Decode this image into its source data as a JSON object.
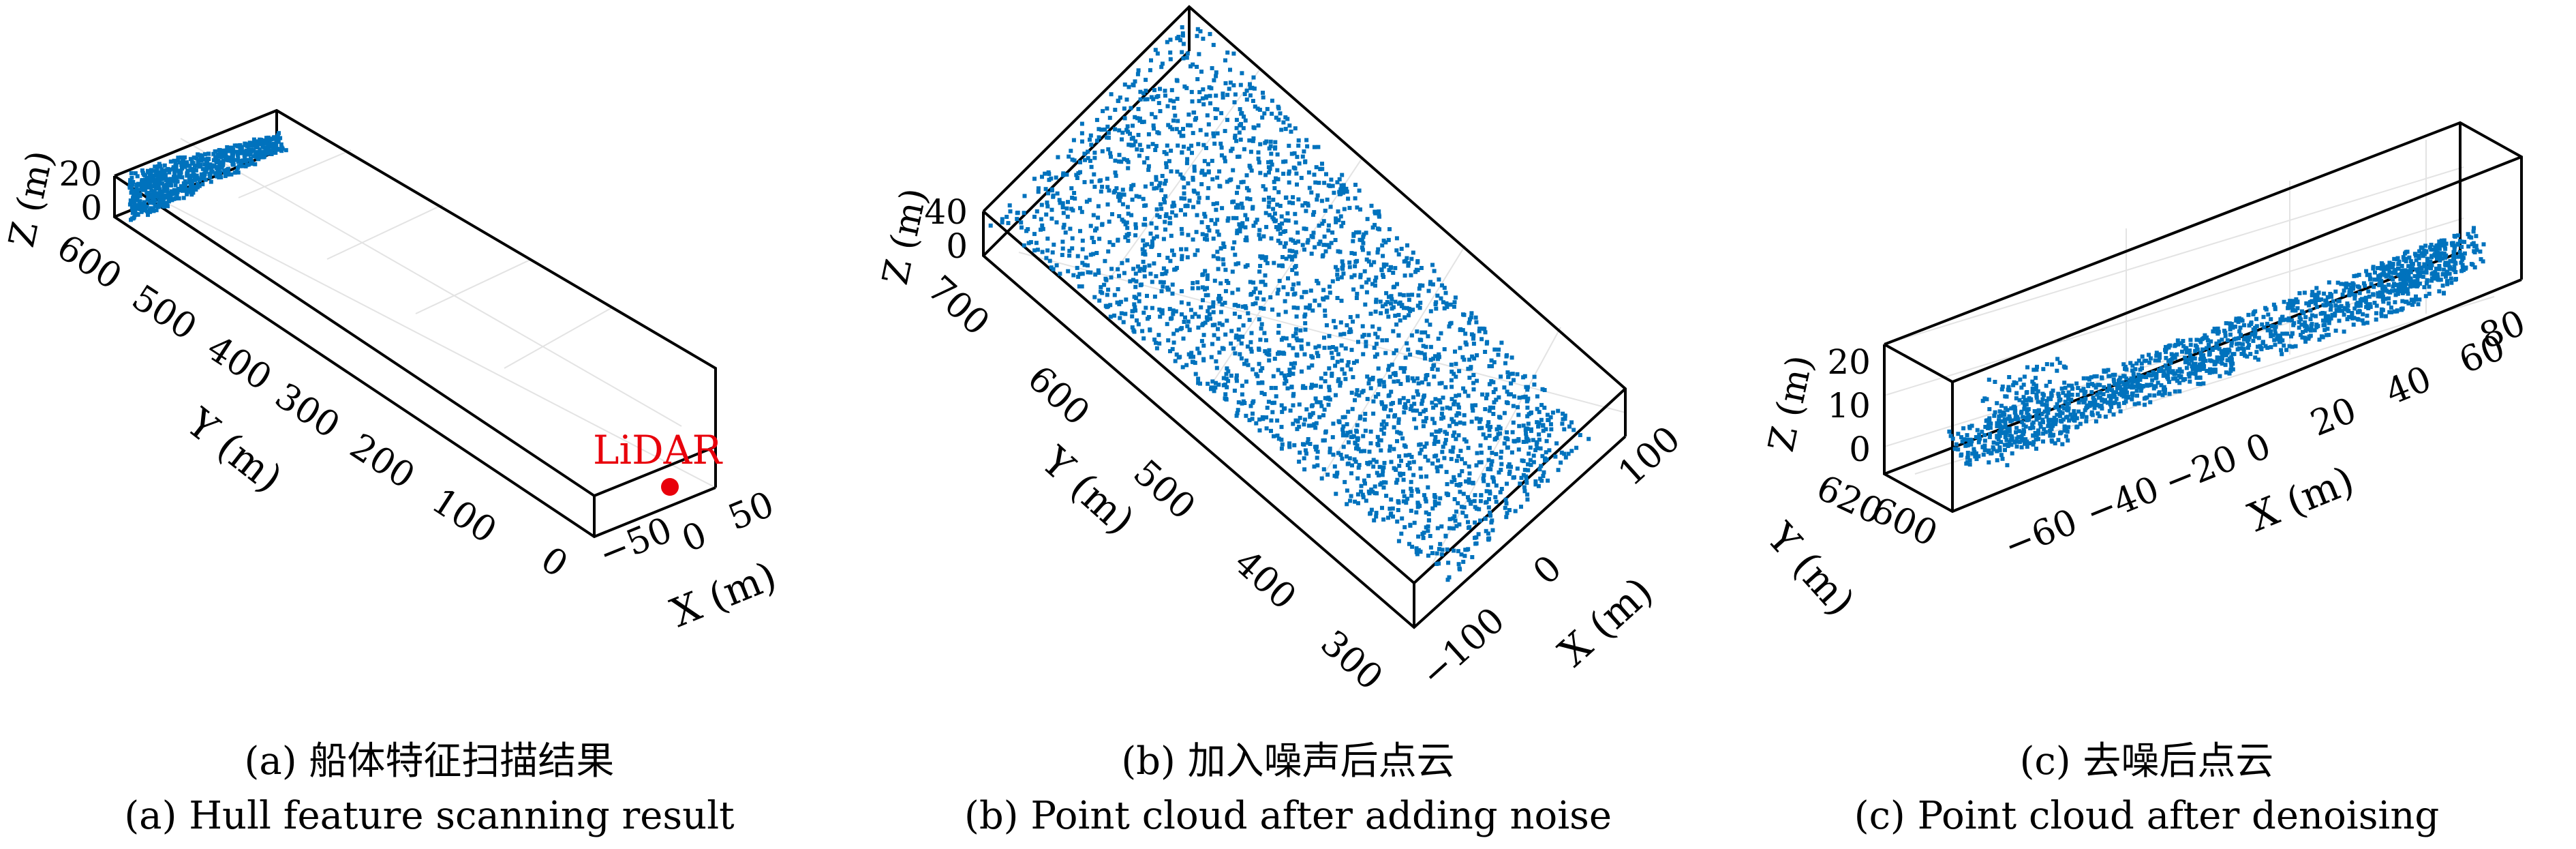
{
  "panels": [
    {
      "caption_zh": "(a) 船体特征扫描结果",
      "caption_en": "(a) Hull feature scanning result"
    },
    {
      "caption_zh": "(b) 加入噪声后点云",
      "caption_en": "(b) Point cloud after adding noise"
    },
    {
      "caption_zh": "(c) 去噪后点云",
      "caption_en": "(c) Point cloud after denoising"
    }
  ],
  "chart_data": [
    {
      "type": "scatter",
      "title": "",
      "xlabel": "X (m)",
      "ylabel": "Y (m)",
      "zlabel": "Z (m)",
      "xlim": [
        -70,
        70
      ],
      "ylim": [
        0,
        620
      ],
      "zlim": [
        0,
        25
      ],
      "x_ticks": [
        "−50",
        "0",
        "50"
      ],
      "y_ticks": [
        "0",
        "100",
        "200",
        "300",
        "400",
        "500",
        "600"
      ],
      "z_ticks": [
        "0",
        "20"
      ],
      "series_color": "#0072BD",
      "points_description_extent": {
        "x": [
          -20,
          20
        ],
        "y": [
          480,
          620
        ],
        "z": [
          0,
          20
        ]
      },
      "annotation": {
        "text": "LiDAR",
        "x": 20,
        "y": 20,
        "z": 0,
        "color": "#E8000B"
      },
      "grid": true
    },
    {
      "type": "scatter",
      "title": "",
      "xlabel": "X (m)",
      "ylabel": "Y (m)",
      "zlabel": "Z (m)",
      "xlim": [
        -120,
        120
      ],
      "ylim": [
        280,
        720
      ],
      "zlim": [
        -5,
        45
      ],
      "x_ticks": [
        "−100",
        "0",
        "100"
      ],
      "y_ticks": [
        "300",
        "400",
        "500",
        "600",
        "700"
      ],
      "z_ticks": [
        "0",
        "40"
      ],
      "series_color": "#0072BD",
      "points_description_extent": {
        "x": [
          -100,
          100
        ],
        "y": [
          300,
          720
        ],
        "z": [
          0,
          40
        ]
      },
      "grid": true
    },
    {
      "type": "scatter",
      "title": "",
      "xlabel": "X (m)",
      "ylabel": "Y (m)",
      "zlabel": "Z (m)",
      "xlim": [
        -75,
        85
      ],
      "ylim": [
        595,
        625
      ],
      "zlim": [
        -5,
        25
      ],
      "x_ticks": [
        "−60",
        "−40",
        "−20",
        "0",
        "20",
        "40",
        "60",
        "80"
      ],
      "y_ticks": [
        "600",
        "620"
      ],
      "z_ticks": [
        "0",
        "10",
        "20"
      ],
      "series_color": "#0072BD",
      "points_description_extent": {
        "x": [
          -65,
          80
        ],
        "y": [
          600,
          620
        ],
        "z": [
          0,
          25
        ]
      },
      "grid": true
    }
  ]
}
